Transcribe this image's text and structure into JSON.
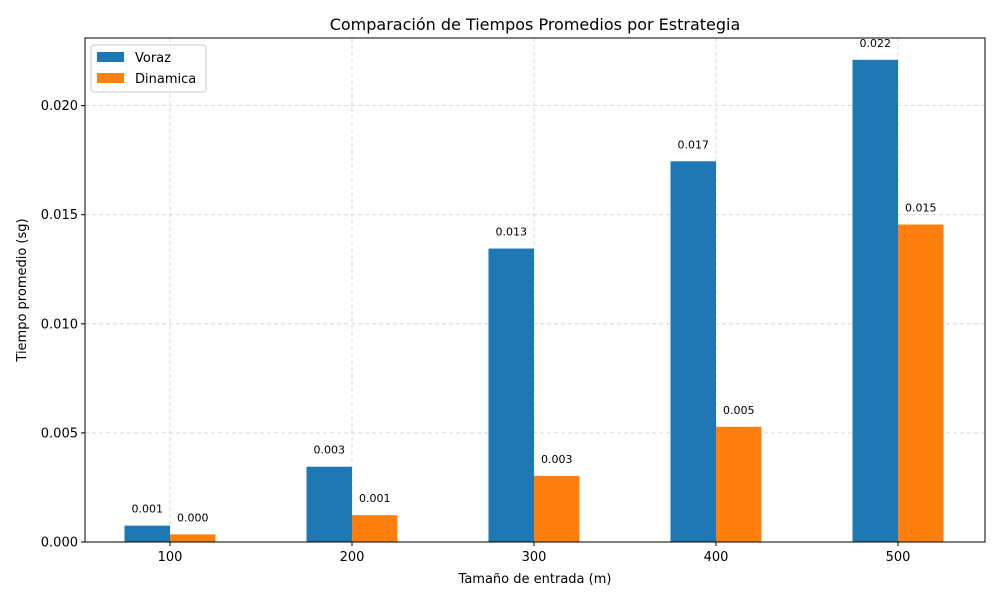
{
  "chart_data": {
    "type": "bar",
    "title": "Comparación de Tiempos Promedios por Estrategia",
    "xlabel": "Tamaño de entrada (m)",
    "ylabel": "Tiempo promedio (sg)",
    "categories": [
      "100",
      "200",
      "300",
      "400",
      "500"
    ],
    "series": [
      {
        "name": "Voraz",
        "color": "#1f77b4",
        "values": [
          0.00075,
          0.00345,
          0.01345,
          0.01745,
          0.0221
        ],
        "labels": [
          "0.001",
          "0.003",
          "0.013",
          "0.017",
          "0.022"
        ]
      },
      {
        "name": "Dinamica",
        "color": "#ff7f0e",
        "values": [
          0.00035,
          0.00123,
          0.00303,
          0.00528,
          0.01455
        ],
        "labels": [
          "0.000",
          "0.001",
          "0.003",
          "0.005",
          "0.015"
        ]
      }
    ],
    "ylim": [
      0,
      0.0231
    ],
    "yticks": [
      0.0,
      0.005,
      0.01,
      0.015,
      0.02
    ],
    "ytick_labels": [
      "0.000",
      "0.005",
      "0.010",
      "0.015",
      "0.020"
    ],
    "grid": true,
    "legend_position": "top-left"
  }
}
